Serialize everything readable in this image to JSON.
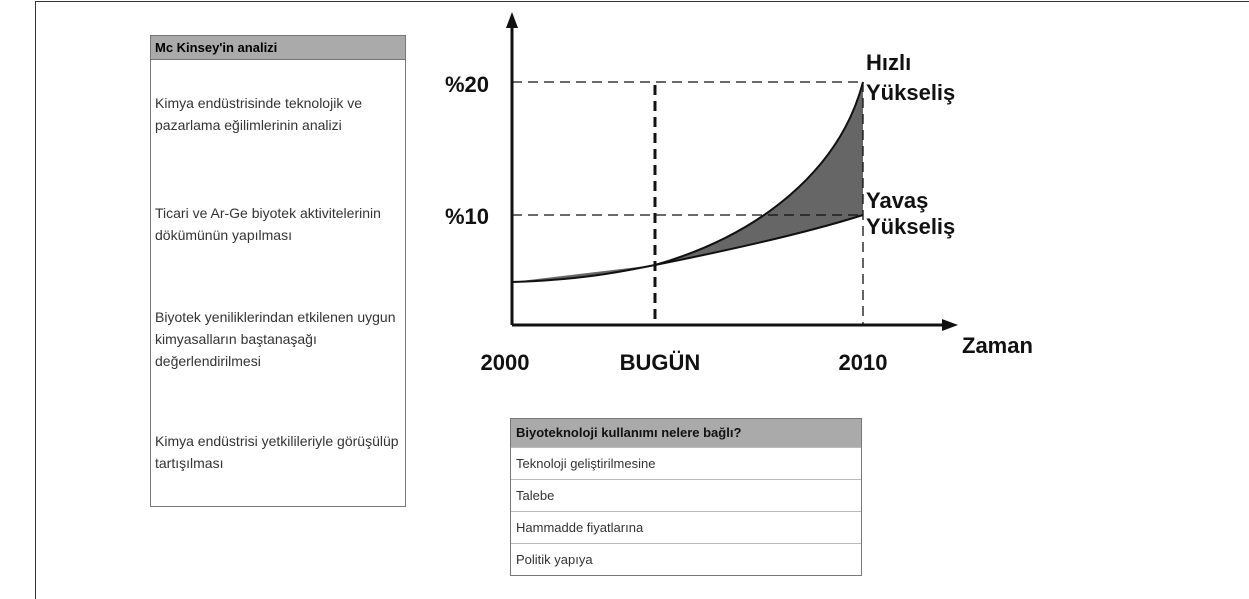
{
  "left_box": {
    "title": "Mc Kinsey'in analizi",
    "items": [
      "Kimya endüstrisinde teknolojik ve pazarlama eğilimlerinin analizi",
      "Ticari ve Ar-Ge biyotek aktivitelerinin dökümünün yapılması",
      "Biyotek yeniliklerindan etkilenen uygun kimyasalların baştanaşağı değerlendirilmesi",
      "Kimya endüstrisi yetkilileriyle görüşülüp tartışılması"
    ]
  },
  "diagram": {
    "y_labels": [
      "%20",
      "%10"
    ],
    "x_labels": [
      "2000",
      "BUGÜN",
      "2010"
    ],
    "x_axis_label": "Zaman",
    "fast_label": [
      "Hızlı",
      "Yükseliş"
    ],
    "slow_label": [
      "Yavaş",
      "Yükseliş"
    ]
  },
  "table": {
    "title": "Biyoteknoloji kullanımı nelere bağlı?",
    "rows": [
      "Teknoloji geliştirilmesine",
      "Talebe",
      "Hammadde fiyatlarına",
      "Politik yapıya"
    ]
  }
}
